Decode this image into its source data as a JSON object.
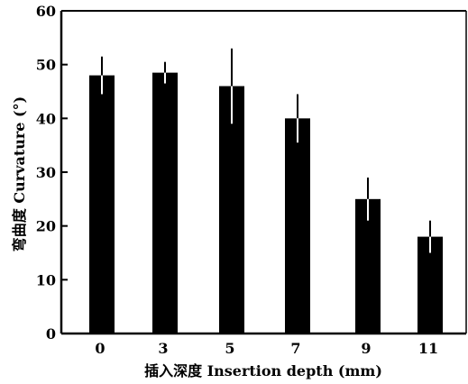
{
  "chart_data": {
    "type": "bar",
    "title": "",
    "xlabel": "插入深度 Insertion depth (mm)",
    "ylabel": "弯曲度 Curvature (°)",
    "categories": [
      "0",
      "3",
      "5",
      "7",
      "9",
      "11"
    ],
    "values": [
      48,
      48.5,
      46,
      40,
      25,
      18
    ],
    "errors": [
      3.5,
      2,
      7,
      4.5,
      4,
      3
    ],
    "ylim": [
      0,
      60
    ],
    "yticks": [
      "0",
      "10",
      "20",
      "30",
      "40",
      "50",
      "60"
    ],
    "grid": false,
    "bar_color": "#000000",
    "error_bar_color": "#ffffff"
  }
}
